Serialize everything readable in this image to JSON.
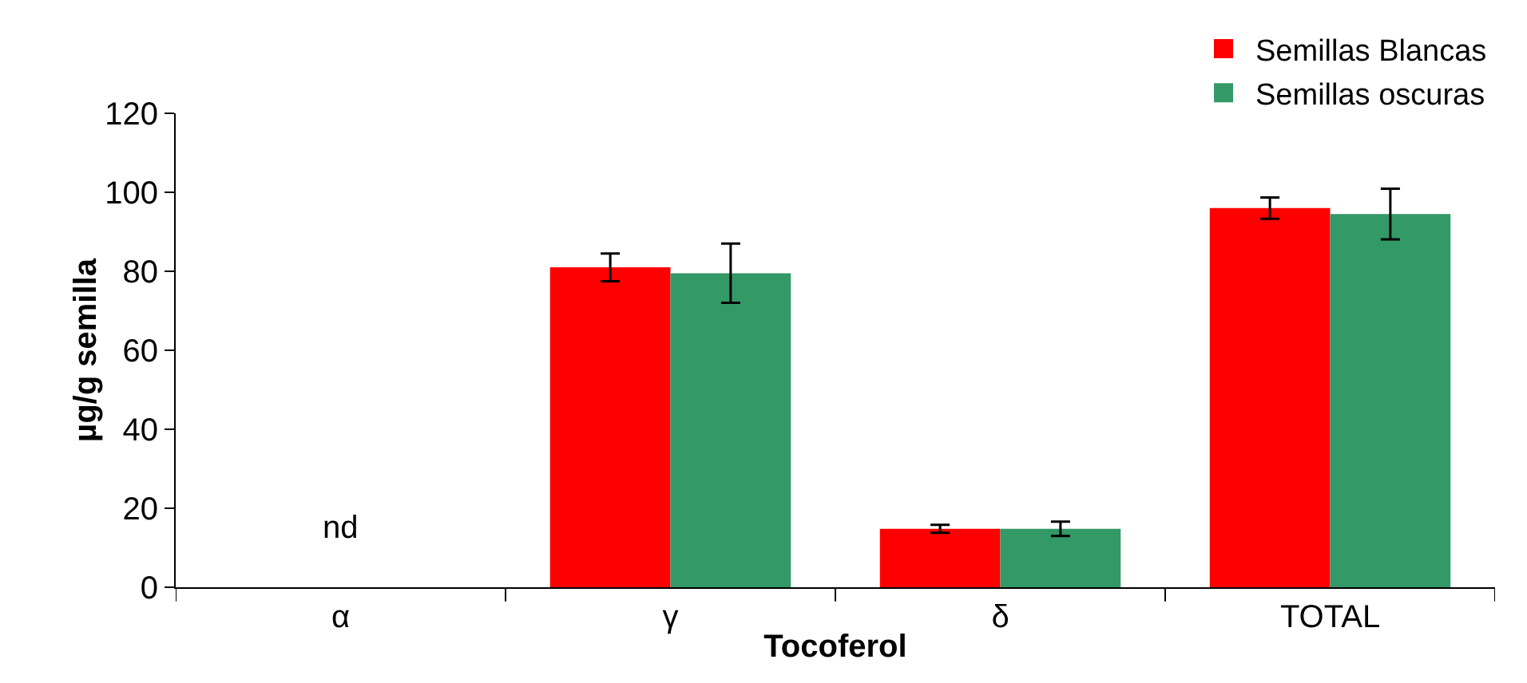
{
  "chart_data": {
    "type": "bar",
    "xlabel": "Tocoferol",
    "ylabel": "µg/g semilla",
    "categories": [
      "α",
      "γ",
      "δ",
      "TOTAL"
    ],
    "series": [
      {
        "name": "Semillas Blancas",
        "color": "#ff0000",
        "values": [
          null,
          81,
          14.8,
          96
        ],
        "errors": [
          null,
          3.5,
          1,
          2.7
        ]
      },
      {
        "name": "Semillas oscuras",
        "color": "#339966",
        "values": [
          null,
          79.5,
          14.8,
          94.5
        ],
        "errors": [
          null,
          7.5,
          1.8,
          6.4
        ]
      }
    ],
    "annotations": [
      "nd"
    ],
    "ylim": [
      0,
      120
    ],
    "yticks": [
      0,
      20,
      40,
      60,
      80,
      100,
      120
    ],
    "grid": false,
    "legend": "top right"
  }
}
